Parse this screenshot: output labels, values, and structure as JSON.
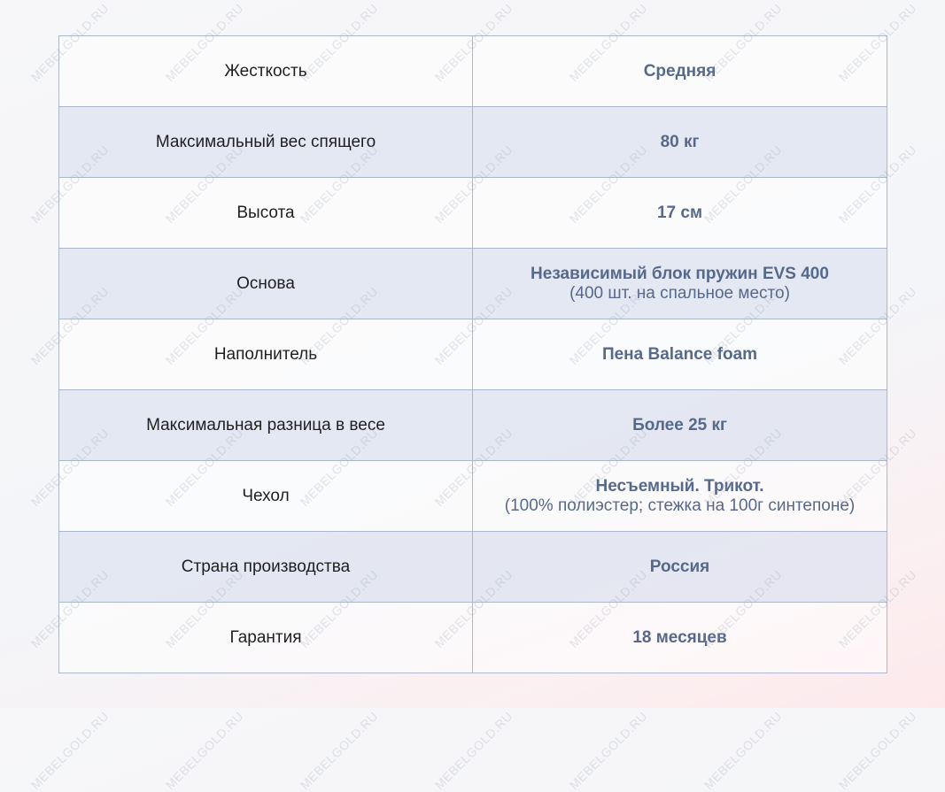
{
  "watermark": "MEBELGOLD.RU",
  "colors": {
    "value_text": "#56698a",
    "border": "#aab7cc",
    "row_alt": "#e2e7f1"
  },
  "rows": [
    {
      "label": "Жесткость",
      "value": "Средняя",
      "note": ""
    },
    {
      "label": "Максимальный вес спящего",
      "value": "80 кг",
      "note": ""
    },
    {
      "label": "Высота",
      "value": "17 см",
      "note": ""
    },
    {
      "label": "Основа",
      "value": "Независимый блок пружин EVS 400",
      "note": "(400 шт. на спальное место)"
    },
    {
      "label": "Наполнитель",
      "value": "Пена Balance foam",
      "note": ""
    },
    {
      "label": "Максимальная разница в весе",
      "value": "Более 25 кг",
      "note": ""
    },
    {
      "label": "Чехол",
      "value": "Несъемный. Трикот.",
      "note": "(100% полиэстер; стежка на 100г синтепоне)"
    },
    {
      "label": "Страна производства",
      "value": "Россия",
      "note": ""
    },
    {
      "label": "Гарантия",
      "value": "18 месяцев",
      "note": ""
    }
  ]
}
